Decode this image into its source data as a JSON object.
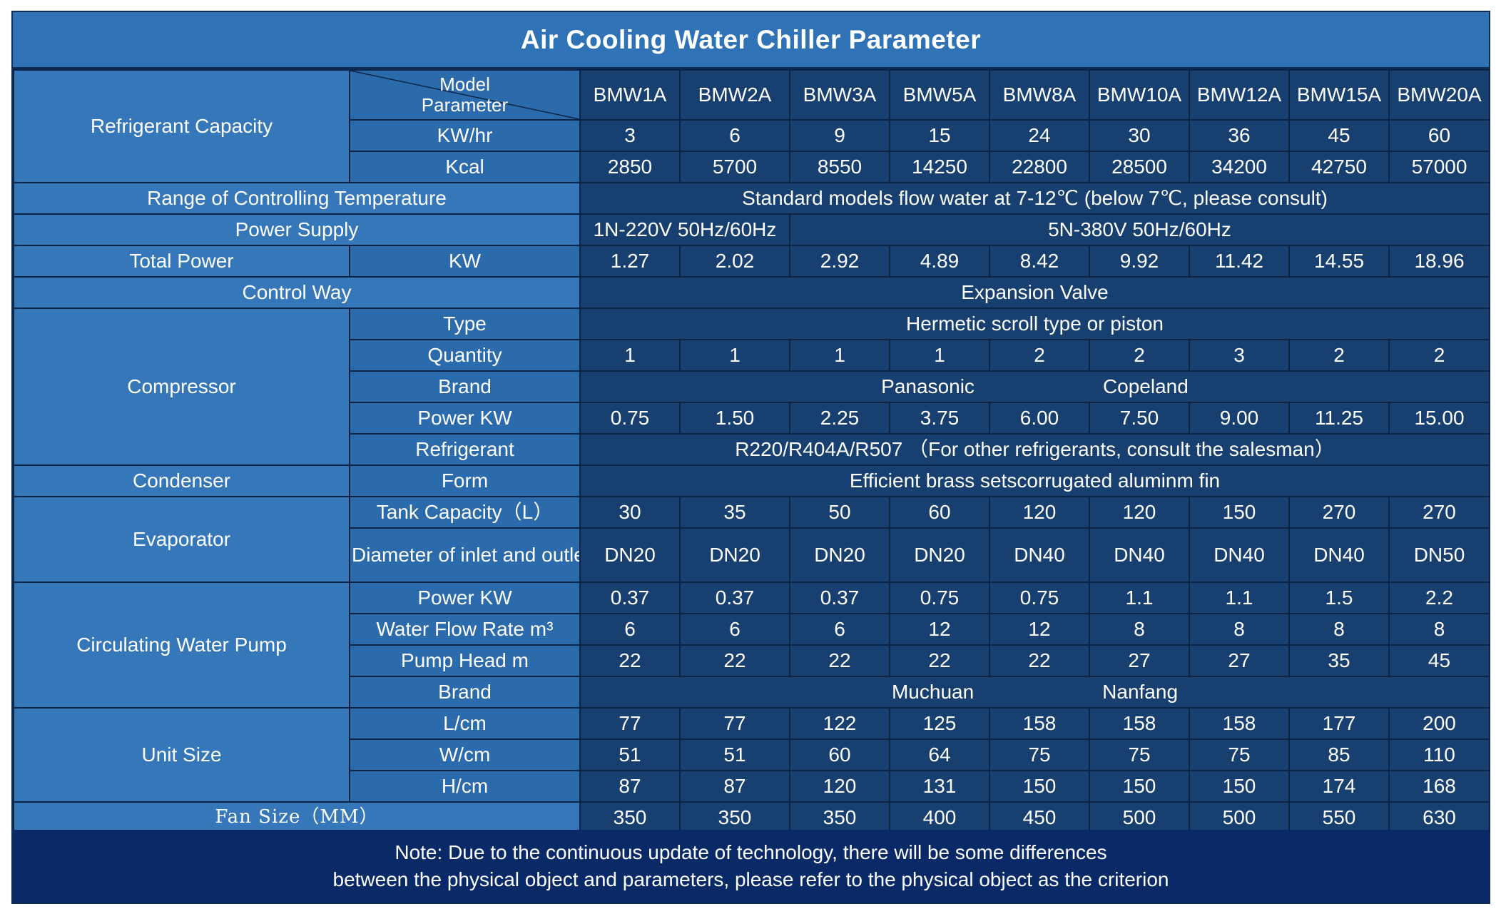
{
  "title": "Air Cooling Water Chiller Parameter",
  "header": {
    "group_label": "Refrigerant Capacity",
    "diag_top": "Model",
    "diag_bottom": "Parameter",
    "models": [
      "BMW1A",
      "BMW2A",
      "BMW3A",
      "BMW5A",
      "BMW8A",
      "BMW10A",
      "BMW12A",
      "BMW15A",
      "BMW20A"
    ]
  },
  "rows": {
    "kwhr": {
      "label": "KW/hr",
      "values": [
        "3",
        "6",
        "9",
        "15",
        "24",
        "30",
        "36",
        "45",
        "60"
      ]
    },
    "kcal": {
      "label": "Kcal",
      "values": [
        "2850",
        "5700",
        "8550",
        "14250",
        "22800",
        "28500",
        "34200",
        "42750",
        "57000"
      ]
    },
    "temp": {
      "label": "Range of Controlling Temperature",
      "value": "Standard models flow water at 7-12℃ (below 7℃, please consult)"
    },
    "power_supply": {
      "label": "Power Supply",
      "value_a": "1N-220V 50Hz/60Hz",
      "value_b": "5N-380V 50Hz/60Hz"
    },
    "total_power": {
      "label": "Total Power",
      "unit": "KW",
      "values": [
        "1.27",
        "2.02",
        "2.92",
        "4.89",
        "8.42",
        "9.92",
        "11.42",
        "14.55",
        "18.96"
      ]
    },
    "control_way": {
      "label": "Control Way",
      "value": "Expansion Valve"
    },
    "compressor": {
      "label": "Compressor",
      "type_label": "Type",
      "type_value": "Hermetic scroll type or piston",
      "qty_label": "Quantity",
      "qty_values": [
        "1",
        "1",
        "1",
        "1",
        "2",
        "2",
        "3",
        "2",
        "2"
      ],
      "brand_label": "Brand",
      "brand_a": "Panasonic",
      "brand_b": "Copeland",
      "power_label": "Power KW",
      "power_values": [
        "0.75",
        "1.50",
        "2.25",
        "3.75",
        "6.00",
        "7.50",
        "9.00",
        "11.25",
        "15.00"
      ],
      "refrig_label": "Refrigerant",
      "refrig_value": "R220/R404A/R507 （For other refrigerants, consult the salesman）"
    },
    "condenser": {
      "label": "Condenser",
      "form_label": "Form",
      "form_value": "Efficient brass setscorrugated aluminm fin"
    },
    "evaporator": {
      "label": "Evaporator",
      "tank_label": "Tank Capacity（L）",
      "tank_values": [
        "30",
        "35",
        "50",
        "60",
        "120",
        "120",
        "150",
        "270",
        "270"
      ],
      "pipe_label": "Diameter of inlet and outlet water pipe",
      "pipe_values": [
        "DN20",
        "DN20",
        "DN20",
        "DN20",
        "DN40",
        "DN40",
        "DN40",
        "DN40",
        "DN50"
      ]
    },
    "pump": {
      "label": "Circulating Water Pump",
      "power_label": "Power KW",
      "power_values": [
        "0.37",
        "0.37",
        "0.37",
        "0.75",
        "0.75",
        "1.1",
        "1.1",
        "1.5",
        "2.2"
      ],
      "flow_label": "Water Flow Rate m³",
      "flow_values": [
        "6",
        "6",
        "6",
        "12",
        "12",
        "8",
        "8",
        "8",
        "8"
      ],
      "head_label": "Pump Head m",
      "head_values": [
        "22",
        "22",
        "22",
        "22",
        "22",
        "27",
        "27",
        "35",
        "45"
      ],
      "brand_label": "Brand",
      "brand_a": "Muchuan",
      "brand_b": "Nanfang"
    },
    "unit_size": {
      "label": "Unit Size",
      "l_label": "L/cm",
      "l_values": [
        "77",
        "77",
        "122",
        "125",
        "158",
        "158",
        "158",
        "177",
        "200"
      ],
      "w_label": "W/cm",
      "w_values": [
        "51",
        "51",
        "60",
        "64",
        "75",
        "75",
        "75",
        "85",
        "110"
      ],
      "h_label": "H/cm",
      "h_values": [
        "87",
        "87",
        "120",
        "131",
        "150",
        "150",
        "150",
        "174",
        "168"
      ]
    },
    "fan": {
      "label": "Fan Size（MM）",
      "values": [
        "350",
        "350",
        "350",
        "400",
        "450",
        "500",
        "500",
        "550",
        "630"
      ]
    }
  },
  "note": {
    "line1": "Note: Due to the continuous update of technology, there will be some differences",
    "line2": "between the physical object and parameters, please refer to the physical object as the criterion"
  }
}
